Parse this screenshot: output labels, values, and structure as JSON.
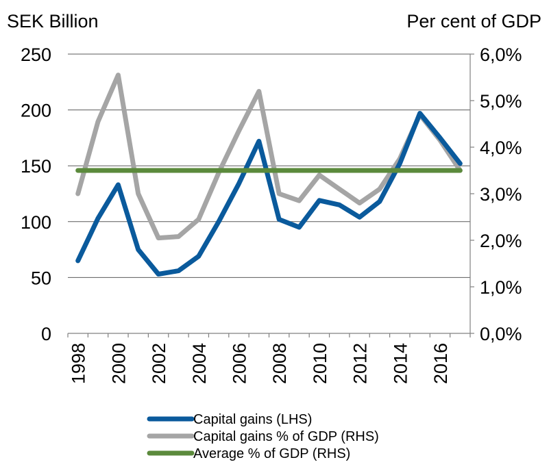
{
  "chart_data": {
    "type": "line",
    "left_axis_title": "SEK Billion",
    "right_axis_title": "Per cent of GDP",
    "x": [
      1998,
      1999,
      2000,
      2001,
      2002,
      2003,
      2004,
      2005,
      2006,
      2007,
      2008,
      2009,
      2010,
      2011,
      2012,
      2013,
      2014,
      2015,
      2016,
      2017
    ],
    "x_tick_labels": [
      "1998",
      "2000",
      "2002",
      "2004",
      "2006",
      "2008",
      "2010",
      "2012",
      "2014",
      "2016"
    ],
    "y_left_ticks": [
      "0",
      "50",
      "100",
      "150",
      "200",
      "250"
    ],
    "y_left_lim": [
      0,
      250
    ],
    "y_right_ticks": [
      "0,0%",
      "1,0%",
      "2,0%",
      "3,0%",
      "4,0%",
      "5,0%",
      "6,0%"
    ],
    "y_right_lim": [
      0,
      6
    ],
    "grid": true,
    "legend_position": "bottom",
    "series": [
      {
        "name": "Capital gains (LHS)",
        "axis": "left",
        "color": "#0a5a9c",
        "values": [
          65,
          103,
          133,
          75,
          53,
          56,
          69,
          100,
          134,
          172,
          102,
          95,
          119,
          115,
          104,
          118,
          152,
          197,
          175,
          152
        ]
      },
      {
        "name": "Capital gains % of GDP (RHS)",
        "axis": "right",
        "color": "#a5a5a5",
        "values": [
          3.0,
          4.55,
          5.55,
          3.0,
          2.05,
          2.08,
          2.45,
          3.45,
          4.35,
          5.2,
          3.0,
          2.85,
          3.4,
          3.1,
          2.8,
          3.1,
          3.75,
          4.7,
          4.15,
          3.5
        ]
      },
      {
        "name": "Average % of GDP (RHS)",
        "axis": "right",
        "color": "#5b8a3c",
        "values": [
          3.5,
          3.5,
          3.5,
          3.5,
          3.5,
          3.5,
          3.5,
          3.5,
          3.5,
          3.5,
          3.5,
          3.5,
          3.5,
          3.5,
          3.5,
          3.5,
          3.5,
          3.5,
          3.5,
          3.5
        ]
      }
    ]
  }
}
